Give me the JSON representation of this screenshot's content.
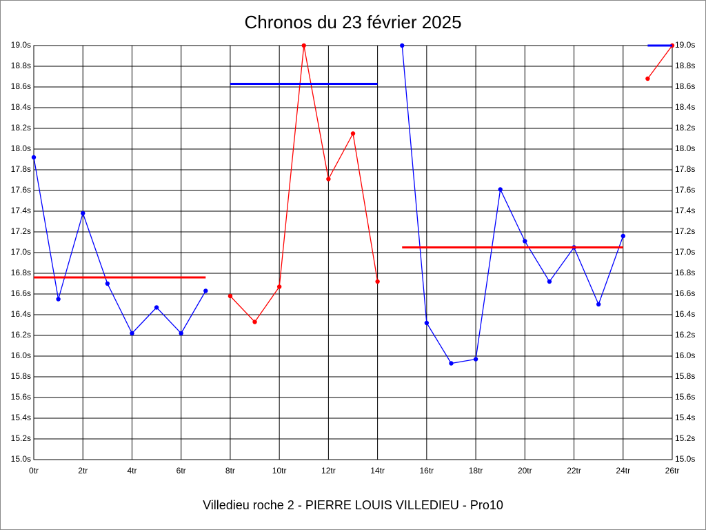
{
  "chart_data": {
    "type": "line",
    "title": "Chronos du 23 février 2025",
    "subtitle": "Villedieu roche 2 - PIERRE LOUIS VILLEDIEU - Pro10",
    "xlim": [
      0,
      26
    ],
    "ylim": [
      15,
      19
    ],
    "grid": true,
    "xticks": [
      {
        "value": 0,
        "label": "0tr"
      },
      {
        "value": 2,
        "label": "2tr"
      },
      {
        "value": 4,
        "label": "4tr"
      },
      {
        "value": 6,
        "label": "6tr"
      },
      {
        "value": 8,
        "label": "8tr"
      },
      {
        "value": 10,
        "label": "10tr"
      },
      {
        "value": 12,
        "label": "12tr"
      },
      {
        "value": 14,
        "label": "14tr"
      },
      {
        "value": 16,
        "label": "16tr"
      },
      {
        "value": 18,
        "label": "18tr"
      },
      {
        "value": 20,
        "label": "20tr"
      },
      {
        "value": 22,
        "label": "22tr"
      },
      {
        "value": 24,
        "label": "24tr"
      },
      {
        "value": 26,
        "label": "26tr"
      }
    ],
    "yticks": [
      {
        "value": 15,
        "label": "15.0s"
      },
      {
        "value": 15.2,
        "label": "15.2s"
      },
      {
        "value": 15.4,
        "label": "15.4s"
      },
      {
        "value": 15.6,
        "label": "15.6s"
      },
      {
        "value": 15.8,
        "label": "15.8s"
      },
      {
        "value": 16,
        "label": "16.0s"
      },
      {
        "value": 16.2,
        "label": "16.2s"
      },
      {
        "value": 16.4,
        "label": "16.4s"
      },
      {
        "value": 16.6,
        "label": "16.6s"
      },
      {
        "value": 16.8,
        "label": "16.8s"
      },
      {
        "value": 17,
        "label": "17.0s"
      },
      {
        "value": 17.2,
        "label": "17.2s"
      },
      {
        "value": 17.4,
        "label": "17.4s"
      },
      {
        "value": 17.6,
        "label": "17.6s"
      },
      {
        "value": 17.8,
        "label": "17.8s"
      },
      {
        "value": 18,
        "label": "18.0s"
      },
      {
        "value": 18.2,
        "label": "18.2s"
      },
      {
        "value": 18.4,
        "label": "18.4s"
      },
      {
        "value": 18.6,
        "label": "18.6s"
      },
      {
        "value": 18.8,
        "label": "18.8s"
      },
      {
        "value": 19,
        "label": "19.0s"
      }
    ],
    "series": [
      {
        "color": "#0000ff",
        "x": [
          0,
          1,
          2,
          3,
          4,
          5,
          6,
          7
        ],
        "values": [
          17.92,
          16.55,
          17.38,
          16.7,
          16.22,
          16.47,
          16.22,
          16.63
        ]
      },
      {
        "color": "#ff0000",
        "x": [
          8,
          9,
          10,
          11,
          12,
          13,
          14
        ],
        "values": [
          16.58,
          16.33,
          16.67,
          19.0,
          17.71,
          18.15,
          16.72
        ]
      },
      {
        "color": "#0000ff",
        "x": [
          15,
          16,
          17,
          18,
          19,
          20,
          21,
          22,
          23,
          24
        ],
        "values": [
          19.0,
          16.32,
          15.93,
          15.97,
          17.61,
          17.11,
          16.72,
          17.05,
          16.5,
          17.16
        ]
      },
      {
        "color": "#ff0000",
        "x": [
          25,
          26
        ],
        "values": [
          18.68,
          19.0
        ]
      }
    ],
    "averages": [
      {
        "color": "#ff0000",
        "x": [
          0,
          7
        ],
        "value": 16.76
      },
      {
        "color": "#0000ff",
        "x": [
          8,
          14
        ],
        "value": 18.63
      },
      {
        "color": "#ff0000",
        "x": [
          15,
          24
        ],
        "value": 17.05
      },
      {
        "color": "#0000ff",
        "x": [
          25,
          26
        ],
        "value": 19.0
      }
    ]
  }
}
